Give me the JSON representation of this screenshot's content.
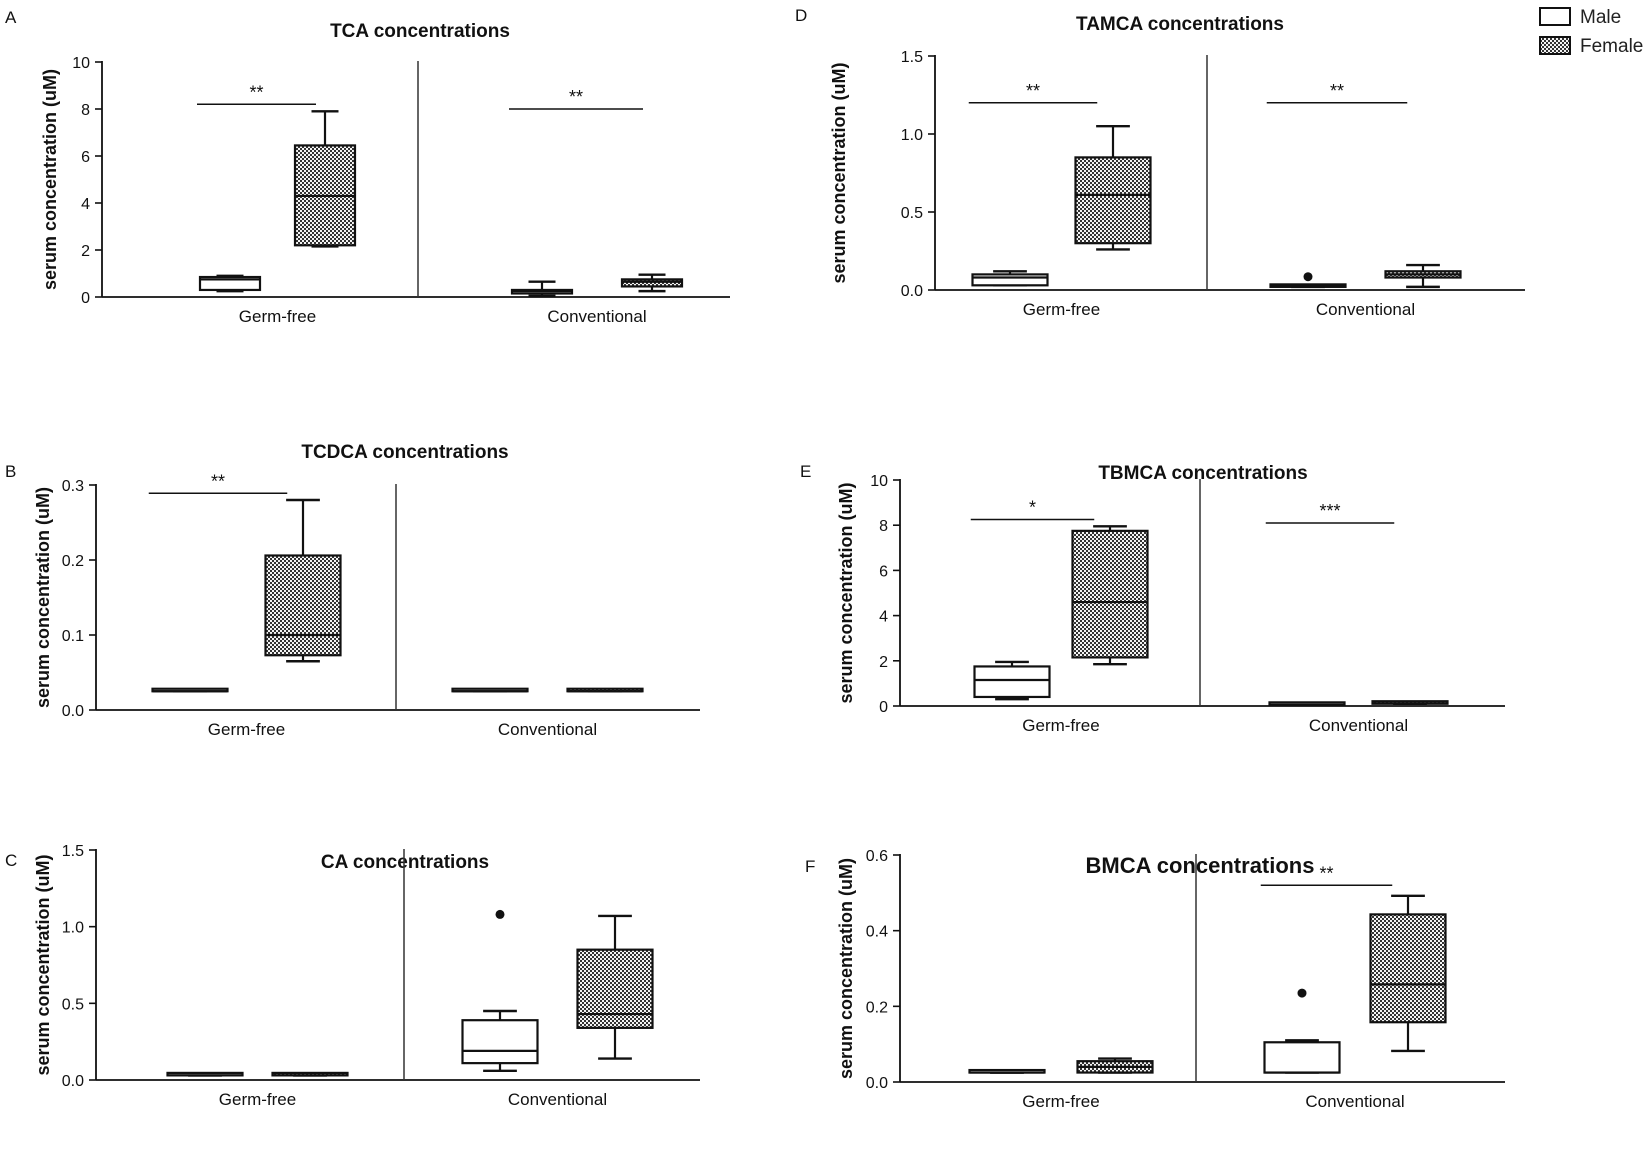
{
  "legend": [
    {
      "name": "Male",
      "fill": "white"
    },
    {
      "name": "Female",
      "fill": "checker"
    }
  ],
  "chart_data": [
    {
      "panel": "A",
      "type": "box",
      "title": "TCA concentrations",
      "ylabel": "serum concentration (uM)",
      "ylim": [
        0,
        10
      ],
      "yticks": [
        0,
        2,
        4,
        6,
        8,
        10
      ],
      "tick_decimals": 0,
      "groups": [
        "Germ-free",
        "Conventional"
      ],
      "boxes": [
        {
          "group": "Germ-free",
          "series": "Male",
          "min": 0.25,
          "q1": 0.3,
          "median": 0.75,
          "q3": 0.85,
          "max": 0.9
        },
        {
          "group": "Germ-free",
          "series": "Female",
          "min": 2.15,
          "q1": 2.2,
          "median": 4.3,
          "q3": 6.45,
          "max": 7.9
        },
        {
          "group": "Conventional",
          "series": "Male",
          "min": 0.05,
          "q1": 0.15,
          "median": 0.25,
          "q3": 0.3,
          "max": 0.65
        },
        {
          "group": "Conventional",
          "series": "Female",
          "min": 0.25,
          "q1": 0.45,
          "median": 0.65,
          "q3": 0.75,
          "max": 0.95
        }
      ],
      "significance": [
        {
          "group": "Germ-free",
          "label": "**",
          "y": 8.2
        },
        {
          "group": "Conventional",
          "label": "**",
          "y": 8.0
        }
      ]
    },
    {
      "panel": "B",
      "type": "box",
      "title": "TCDCA concentrations",
      "ylabel": "serum concentration (uM)",
      "ylim": [
        0,
        0.3
      ],
      "yticks": [
        0,
        0.1,
        0.2,
        0.3
      ],
      "tick_decimals": 1,
      "groups": [
        "Germ-free",
        "Conventional"
      ],
      "boxes": [
        {
          "group": "Germ-free",
          "series": "Male",
          "min": 0.025,
          "q1": 0.025,
          "median": 0.025,
          "q3": 0.025,
          "max": 0.025
        },
        {
          "group": "Germ-free",
          "series": "Female",
          "min": 0.065,
          "q1": 0.073,
          "median": 0.1,
          "q3": 0.206,
          "max": 0.28
        },
        {
          "group": "Conventional",
          "series": "Male",
          "min": 0.025,
          "q1": 0.025,
          "median": 0.025,
          "q3": 0.025,
          "max": 0.025
        },
        {
          "group": "Conventional",
          "series": "Female",
          "min": 0.025,
          "q1": 0.025,
          "median": 0.025,
          "q3": 0.025,
          "max": 0.025
        }
      ],
      "significance": [
        {
          "group": "Germ-free",
          "label": "**",
          "y": 0.289
        }
      ]
    },
    {
      "panel": "C",
      "type": "box",
      "title": "CA concentrations",
      "ylabel": "serum concentration (uM)",
      "ylim": [
        0,
        1.5
      ],
      "yticks": [
        0,
        0.5,
        1.0,
        1.5
      ],
      "tick_decimals": 1,
      "groups": [
        "Germ-free",
        "Conventional"
      ],
      "boxes": [
        {
          "group": "Germ-free",
          "series": "Male",
          "min": 0.03,
          "q1": 0.03,
          "median": 0.03,
          "q3": 0.03,
          "max": 0.03
        },
        {
          "group": "Germ-free",
          "series": "Female",
          "min": 0.03,
          "q1": 0.03,
          "median": 0.03,
          "q3": 0.03,
          "max": 0.03
        },
        {
          "group": "Conventional",
          "series": "Male",
          "min": 0.06,
          "q1": 0.11,
          "median": 0.19,
          "q3": 0.39,
          "max": 0.45,
          "outliers": [
            1.08
          ]
        },
        {
          "group": "Conventional",
          "series": "Female",
          "min": 0.14,
          "q1": 0.34,
          "median": 0.43,
          "q3": 0.85,
          "max": 1.07
        }
      ],
      "significance": []
    },
    {
      "panel": "D",
      "type": "box",
      "title": "TAMCA  concentrations",
      "ylabel": "serum concentration (uM)",
      "ylim": [
        0,
        1.5
      ],
      "yticks": [
        0,
        0.5,
        1.0,
        1.5
      ],
      "tick_decimals": 1,
      "groups": [
        "Germ-free",
        "Conventional"
      ],
      "boxes": [
        {
          "group": "Germ-free",
          "series": "Male",
          "min": 0.03,
          "q1": 0.03,
          "median": 0.08,
          "q3": 0.1,
          "max": 0.12
        },
        {
          "group": "Germ-free",
          "series": "Female",
          "min": 0.26,
          "q1": 0.3,
          "median": 0.61,
          "q3": 0.85,
          "max": 1.05
        },
        {
          "group": "Conventional",
          "series": "Male",
          "min": 0.02,
          "q1": 0.02,
          "median": 0.025,
          "q3": 0.03,
          "max": 0.03,
          "outliers": [
            0.085
          ]
        },
        {
          "group": "Conventional",
          "series": "Female",
          "min": 0.02,
          "q1": 0.08,
          "median": 0.1,
          "q3": 0.12,
          "max": 0.16
        }
      ],
      "significance": [
        {
          "group": "Germ-free",
          "label": "**",
          "y": 1.2
        },
        {
          "group": "Conventional",
          "label": "**",
          "y": 1.2
        }
      ]
    },
    {
      "panel": "E",
      "type": "box",
      "title": "TBMCA concentrations",
      "ylabel": "serum concentration (uM)",
      "ylim": [
        0,
        10
      ],
      "yticks": [
        0,
        2,
        4,
        6,
        8,
        10
      ],
      "tick_decimals": 0,
      "groups": [
        "Germ-free",
        "Conventional"
      ],
      "boxes": [
        {
          "group": "Germ-free",
          "series": "Male",
          "min": 0.3,
          "q1": 0.4,
          "median": 1.15,
          "q3": 1.75,
          "max": 1.95
        },
        {
          "group": "Germ-free",
          "series": "Female",
          "min": 1.85,
          "q1": 2.15,
          "median": 4.6,
          "q3": 7.75,
          "max": 7.95
        },
        {
          "group": "Conventional",
          "series": "Male",
          "min": 0.05,
          "q1": 0.05,
          "median": 0.05,
          "q3": 0.05,
          "max": 0.05
        },
        {
          "group": "Conventional",
          "series": "Female",
          "min": 0.1,
          "q1": 0.1,
          "median": 0.12,
          "q3": 0.15,
          "max": 0.15
        }
      ],
      "significance": [
        {
          "group": "Germ-free",
          "label": "*",
          "y": 8.25
        },
        {
          "group": "Conventional",
          "label": "***",
          "y": 8.1
        }
      ]
    },
    {
      "panel": "F",
      "type": "box",
      "title": "BMCA concentrations",
      "ylabel": "serum concentration (uM)",
      "ylim": [
        0,
        0.6
      ],
      "yticks": [
        0,
        0.2,
        0.4,
        0.6
      ],
      "tick_decimals": 1,
      "groups": [
        "Germ-free",
        "Conventional"
      ],
      "boxes": [
        {
          "group": "Germ-free",
          "series": "Male",
          "min": 0.025,
          "q1": 0.025,
          "median": 0.025,
          "q3": 0.025,
          "max": 0.025
        },
        {
          "group": "Germ-free",
          "series": "Female",
          "min": 0.025,
          "q1": 0.025,
          "median": 0.04,
          "q3": 0.055,
          "max": 0.062
        },
        {
          "group": "Conventional",
          "series": "Male",
          "min": 0.025,
          "q1": 0.025,
          "median": 0.025,
          "q3": 0.105,
          "max": 0.11,
          "outliers": [
            0.235
          ]
        },
        {
          "group": "Conventional",
          "series": "Female",
          "min": 0.082,
          "q1": 0.158,
          "median": 0.258,
          "q3": 0.443,
          "max": 0.492
        }
      ],
      "significance": [
        {
          "group": "Conventional",
          "label": "**",
          "y": 0.52
        }
      ]
    }
  ]
}
